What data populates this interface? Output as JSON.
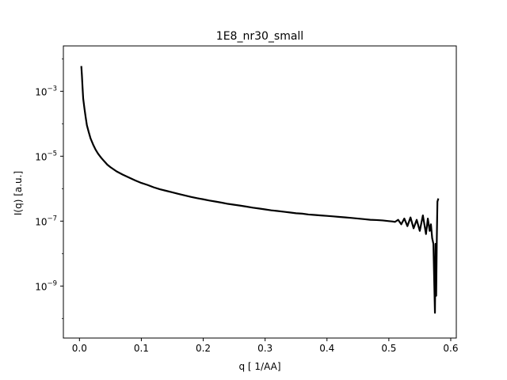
{
  "chart_data": {
    "type": "line",
    "title": "1E8_nr30_small",
    "xlabel": "q [ 1/AA]",
    "ylabel": "I(q) [a.u.]",
    "xscale": "linear",
    "yscale": "log",
    "xlim": [
      -0.026,
      0.609
    ],
    "ylim": [
      2.5e-11,
      0.025
    ],
    "xticks": [
      {
        "value": 0.0,
        "label": "0.0"
      },
      {
        "value": 0.1,
        "label": "0.1"
      },
      {
        "value": 0.2,
        "label": "0.2"
      },
      {
        "value": 0.3,
        "label": "0.3"
      },
      {
        "value": 0.4,
        "label": "0.4"
      },
      {
        "value": 0.5,
        "label": "0.5"
      },
      {
        "value": 0.6,
        "label": "0.6"
      }
    ],
    "yticks": [
      {
        "value": 0.001,
        "base": "10",
        "exp": "−3"
      },
      {
        "value": 1e-05,
        "base": "10",
        "exp": "−5"
      },
      {
        "value": 1e-07,
        "base": "10",
        "exp": "−7"
      },
      {
        "value": 1e-09,
        "base": "10",
        "exp": "−9"
      }
    ],
    "grid": false,
    "line_color": "#000000",
    "series": [
      {
        "x": [
          0.003,
          0.004,
          0.005,
          0.006,
          0.008,
          0.01,
          0.012,
          0.015,
          0.018,
          0.022,
          0.026,
          0.03,
          0.035,
          0.04,
          0.045,
          0.05,
          0.06,
          0.07,
          0.08,
          0.09,
          0.1,
          0.11,
          0.12,
          0.13,
          0.14,
          0.15,
          0.16,
          0.17,
          0.18,
          0.19,
          0.2,
          0.21,
          0.22,
          0.23,
          0.24,
          0.25,
          0.26,
          0.27,
          0.28,
          0.29,
          0.3,
          0.31,
          0.32,
          0.33,
          0.34,
          0.35,
          0.36,
          0.37,
          0.38,
          0.39,
          0.4,
          0.41,
          0.42,
          0.43,
          0.44,
          0.45,
          0.46,
          0.47,
          0.48,
          0.49,
          0.5,
          0.505,
          0.51,
          0.515,
          0.52,
          0.525,
          0.53,
          0.535,
          0.54,
          0.545,
          0.55,
          0.555,
          0.56,
          0.563,
          0.566,
          0.568,
          0.57,
          0.572,
          0.5735,
          0.5745,
          0.5755,
          0.5765,
          0.5775,
          0.5785,
          0.58
        ],
        "y": [
          0.006,
          0.003,
          0.0013,
          0.0006,
          0.0003,
          0.00016,
          9e-05,
          5.5e-05,
          3.5e-05,
          2.3e-05,
          1.6e-05,
          1.2e-05,
          9e-06,
          7e-06,
          5.5e-06,
          4.6e-06,
          3.4e-06,
          2.7e-06,
          2.2e-06,
          1.8e-06,
          1.5e-06,
          1.3e-06,
          1.1e-06,
          9.6e-07,
          8.6e-07,
          7.7e-07,
          6.9e-07,
          6.2e-07,
          5.6e-07,
          5.1e-07,
          4.7e-07,
          4.3e-07,
          4e-07,
          3.7e-07,
          3.4e-07,
          3.2e-07,
          3e-07,
          2.8e-07,
          2.6e-07,
          2.45e-07,
          2.3e-07,
          2.15e-07,
          2.05e-07,
          1.95e-07,
          1.85e-07,
          1.75e-07,
          1.7e-07,
          1.6e-07,
          1.55e-07,
          1.5e-07,
          1.45e-07,
          1.4e-07,
          1.35e-07,
          1.3e-07,
          1.25e-07,
          1.2e-07,
          1.15e-07,
          1.1e-07,
          1.08e-07,
          1.05e-07,
          1e-07,
          9.8e-08,
          9.5e-08,
          1.1e-07,
          8e-08,
          1.2e-07,
          7e-08,
          1.3e-07,
          6e-08,
          1.1e-07,
          5e-08,
          1.5e-07,
          4e-08,
          1.2e-07,
          5e-08,
          8e-08,
          3e-08,
          2e-08,
          1e-09,
          1.5e-10,
          2e-08,
          5e-10,
          3e-08,
          4e-07,
          5e-07
        ]
      }
    ]
  }
}
